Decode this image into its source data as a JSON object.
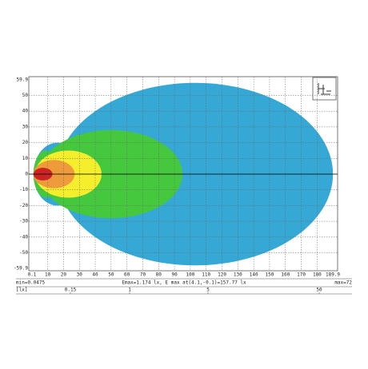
{
  "chart_data": {
    "type": "contour",
    "xlim": [
      0.1,
      189.9
    ],
    "ylim": [
      -59.9,
      59.9
    ],
    "xticks": [
      0.1,
      10,
      20,
      30,
      40,
      50,
      60,
      70,
      80,
      90,
      100,
      110,
      120,
      130,
      140,
      150,
      160,
      170,
      180,
      189.9
    ],
    "yticks": [
      -59.9,
      -50,
      -40,
      -30,
      -20,
      -10,
      0,
      10,
      20,
      30,
      40,
      50,
      59.9
    ],
    "grid": true,
    "min_label": "min=0.0475",
    "max_label": "max=72",
    "emax_label": "Emax=1.174 lx, E max at(4.1,-0.1)=157.77 lx",
    "unit_label": "[lx]",
    "levels": [
      {
        "value": 0.15,
        "color": "#36a8d6",
        "ellipses": [
          [
            103,
            0,
            87,
            58
          ],
          [
            16,
            0,
            15,
            20
          ]
        ]
      },
      {
        "value": 1,
        "color": "#46c83e",
        "ellipses": [
          [
            50,
            0,
            45,
            28
          ],
          [
            9,
            0,
            8,
            15
          ]
        ]
      },
      {
        "value": 5,
        "color": "#f4ee2c",
        "ellipses": [
          [
            23,
            0,
            21,
            15
          ]
        ]
      },
      {
        "value": 50,
        "color": "#ee9b3c",
        "ellipses": [
          [
            14,
            0,
            13,
            9
          ]
        ]
      },
      {
        "color": "#cc2222",
        "ellipses": [
          [
            7,
            0,
            6,
            4
          ]
        ]
      }
    ]
  }
}
